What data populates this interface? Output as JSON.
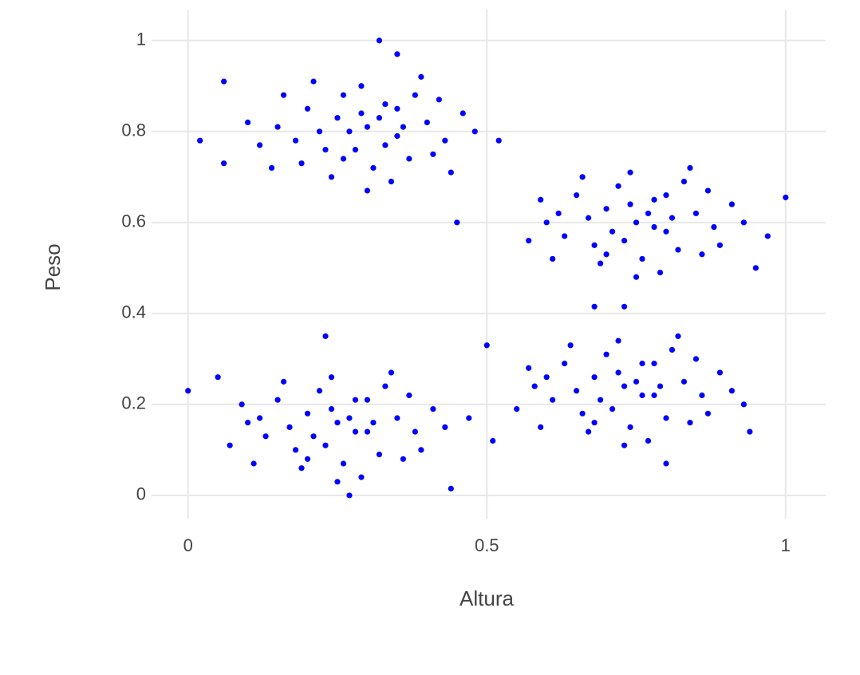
{
  "chart_data": {
    "type": "scatter",
    "x_label": "Altura",
    "y_label": "Peso",
    "color": "#0000ff",
    "xlim": [
      -0.061,
      1.067
    ],
    "ylim": [
      -0.051,
      1.068
    ],
    "xticks": [
      0,
      0.5,
      1
    ],
    "yticks": [
      0,
      0.2,
      0.4,
      0.6,
      0.8,
      1
    ],
    "grid": true,
    "x": [
      0.3,
      0.25,
      0.35,
      0.28,
      0.33,
      0.22,
      0.4,
      0.18,
      0.26,
      0.37,
      0.31,
      0.2,
      0.43,
      0.15,
      0.29,
      0.38,
      0.24,
      0.34,
      0.46,
      0.12,
      0.27,
      0.32,
      0.36,
      0.23,
      0.19,
      0.41,
      0.48,
      0.1,
      0.39,
      0.21,
      0.3,
      0.44,
      0.16,
      0.52,
      0.29,
      0.33,
      0.26,
      0.35,
      0.42,
      0.14,
      0.75,
      0.7,
      0.8,
      0.73,
      0.78,
      0.67,
      0.85,
      0.63,
      0.72,
      0.82,
      0.76,
      0.65,
      0.88,
      0.6,
      0.74,
      0.83,
      0.69,
      0.79,
      0.91,
      0.57,
      0.77,
      0.81,
      0.71,
      0.68,
      0.86,
      0.93,
      0.59,
      0.84,
      0.66,
      0.75,
      0.89,
      0.61,
      0.97,
      0.74,
      0.78,
      0.7,
      0.8,
      0.87,
      0.62,
      0.95,
      0.25,
      0.2,
      0.3,
      0.23,
      0.28,
      0.17,
      0.35,
      0.13,
      0.22,
      0.32,
      0.26,
      0.15,
      0.38,
      0.1,
      0.24,
      0.33,
      0.19,
      0.29,
      0.41,
      0.07,
      0.27,
      0.31,
      0.21,
      0.18,
      0.36,
      0.43,
      0.09,
      0.34,
      0.16,
      0.25,
      0.39,
      0.11,
      0.47,
      0.24,
      0.28,
      0.2,
      0.3,
      0.37,
      0.12,
      0.05,
      0.73,
      0.68,
      0.78,
      0.71,
      0.76,
      0.65,
      0.83,
      0.61,
      0.7,
      0.8,
      0.74,
      0.63,
      0.86,
      0.58,
      0.72,
      0.81,
      0.67,
      0.77,
      0.89,
      0.55,
      0.75,
      0.79,
      0.69,
      0.66,
      0.84,
      0.91,
      0.57,
      0.82,
      0.64,
      0.73,
      0.87,
      0.59,
      0.93,
      0.72,
      0.76,
      0.68,
      0.78,
      0.85,
      0.6,
      0.94,
      0.32,
      0.35,
      0.02,
      0.06,
      0.06,
      0.45,
      1.0,
      0.68,
      0.73,
      0.23,
      0.44,
      0.27,
      0.0,
      0.5,
      0.51,
      0.8
    ],
    "values": [
      0.81,
      0.83,
      0.79,
      0.76,
      0.86,
      0.8,
      0.82,
      0.78,
      0.88,
      0.74,
      0.72,
      0.85,
      0.78,
      0.81,
      0.9,
      0.88,
      0.7,
      0.69,
      0.84,
      0.77,
      0.8,
      0.83,
      0.81,
      0.76,
      0.73,
      0.75,
      0.8,
      0.82,
      0.92,
      0.91,
      0.67,
      0.71,
      0.88,
      0.78,
      0.84,
      0.77,
      0.74,
      0.85,
      0.87,
      0.72,
      0.6,
      0.63,
      0.58,
      0.56,
      0.65,
      0.61,
      0.62,
      0.57,
      0.68,
      0.54,
      0.52,
      0.66,
      0.59,
      0.6,
      0.71,
      0.69,
      0.51,
      0.49,
      0.64,
      0.56,
      0.62,
      0.61,
      0.58,
      0.55,
      0.53,
      0.6,
      0.65,
      0.72,
      0.7,
      0.48,
      0.55,
      0.52,
      0.57,
      0.64,
      0.59,
      0.53,
      0.66,
      0.67,
      0.62,
      0.5,
      0.16,
      0.18,
      0.14,
      0.11,
      0.21,
      0.15,
      0.17,
      0.13,
      0.23,
      0.09,
      0.07,
      0.21,
      0.14,
      0.16,
      0.26,
      0.24,
      0.06,
      0.04,
      0.19,
      0.11,
      0.17,
      0.16,
      0.13,
      0.1,
      0.08,
      0.15,
      0.2,
      0.27,
      0.25,
      0.03,
      0.1,
      0.07,
      0.17,
      0.19,
      0.14,
      0.08,
      0.21,
      0.22,
      0.17,
      0.26,
      0.24,
      0.26,
      0.22,
      0.19,
      0.29,
      0.23,
      0.25,
      0.21,
      0.31,
      0.17,
      0.15,
      0.29,
      0.22,
      0.24,
      0.34,
      0.32,
      0.14,
      0.12,
      0.27,
      0.19,
      0.25,
      0.24,
      0.21,
      0.18,
      0.16,
      0.23,
      0.28,
      0.35,
      0.33,
      0.11,
      0.18,
      0.15,
      0.2,
      0.27,
      0.22,
      0.16,
      0.29,
      0.3,
      0.26,
      0.14,
      1.0,
      0.97,
      0.78,
      0.91,
      0.73,
      0.6,
      0.655,
      0.415,
      0.415,
      0.35,
      0.015,
      0.0,
      0.23,
      0.33,
      0.12,
      0.07
    ]
  }
}
